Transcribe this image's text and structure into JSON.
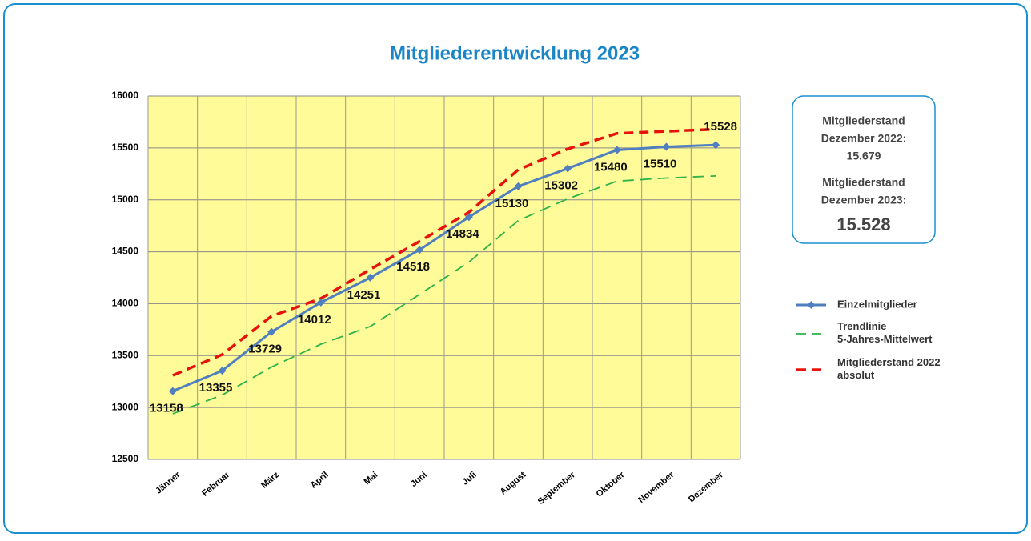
{
  "chart_data": {
    "type": "line",
    "title": "Mitgliederentwicklung 2023",
    "categories": [
      "Jänner",
      "Februar",
      "März",
      "April",
      "Mai",
      "Juni",
      "Juli",
      "August",
      "September",
      "Oktober",
      "November",
      "Dezember"
    ],
    "series": [
      {
        "name": "Einzelmitglieder",
        "color": "#4f7fbf",
        "style": "solid",
        "data_labels": true,
        "values": [
          13158,
          13355,
          13729,
          14012,
          14251,
          14518,
          14834,
          15130,
          15302,
          15480,
          15510,
          15528
        ]
      },
      {
        "name": "Trendlinie 5-Jahres-Mittelwert",
        "color": "#2db34a",
        "style": "dashed",
        "values": [
          12940,
          13120,
          13390,
          13610,
          13780,
          14090,
          14400,
          14800,
          15010,
          15180,
          15210,
          15230
        ]
      },
      {
        "name": "Mitgliederstand 2022 absolut",
        "color": "#e8120c",
        "style": "dashed-thick",
        "values": [
          13310,
          13510,
          13880,
          14050,
          14330,
          14600,
          14880,
          15290,
          15490,
          15640,
          15660,
          15680
        ]
      }
    ],
    "ylim": [
      12500,
      16000
    ],
    "yticks": [
      12500,
      13000,
      13500,
      14000,
      14500,
      15000,
      15500,
      16000
    ],
    "grid": true,
    "info_box": {
      "lines_2022": [
        "Mitgliederstand",
        "Dezember 2022:",
        "15.679"
      ],
      "lines_2023": [
        "Mitgliederstand",
        "Dezember 2023:"
      ],
      "value_2023": "15.528"
    }
  }
}
